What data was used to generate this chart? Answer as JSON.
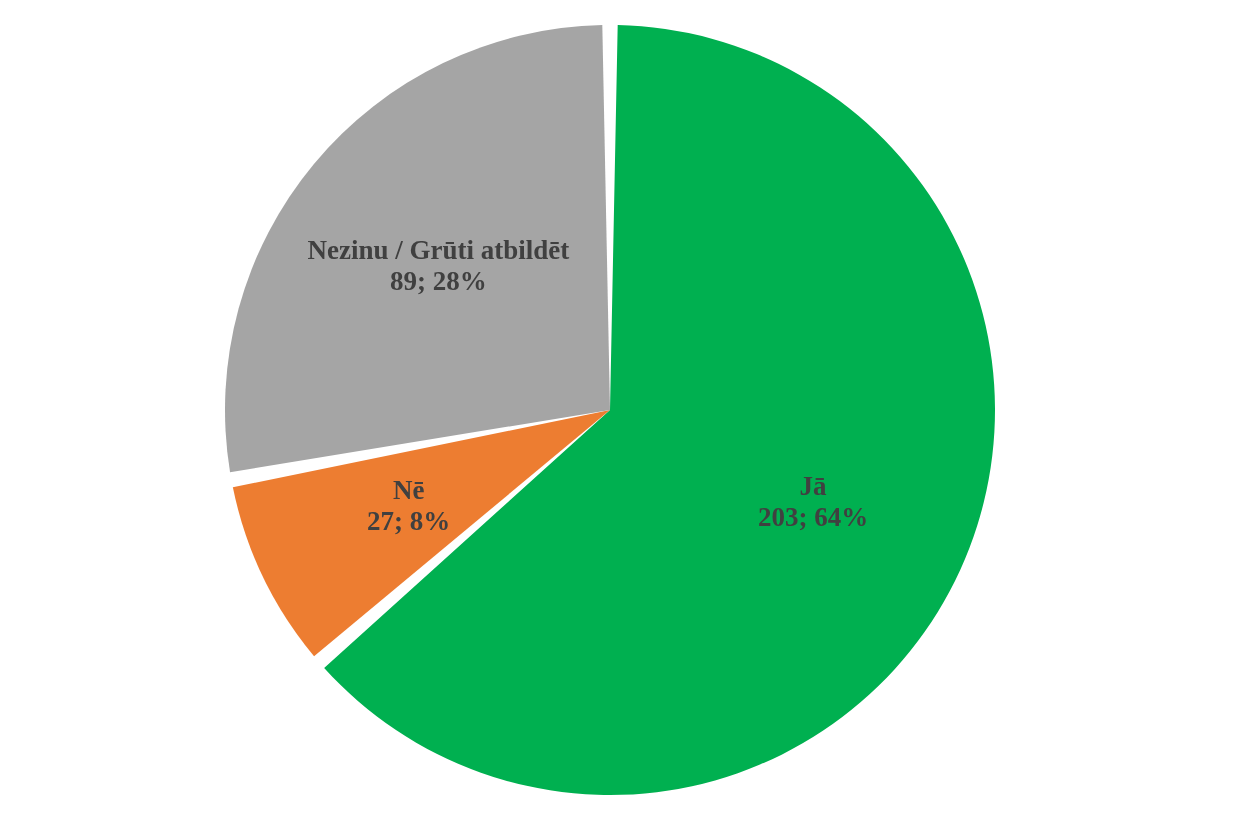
{
  "chart_data": {
    "type": "pie",
    "categories": [
      "Jā",
      "Nē",
      "Nezinu / Grūti atbildēt"
    ],
    "values": [
      203,
      27,
      89
    ],
    "colors": [
      "#00b050",
      "#ed7d31",
      "#a5a5a5"
    ],
    "value_labels": [
      "203; 64%",
      "27; 8%",
      "89; 28%"
    ],
    "legend": false
  }
}
